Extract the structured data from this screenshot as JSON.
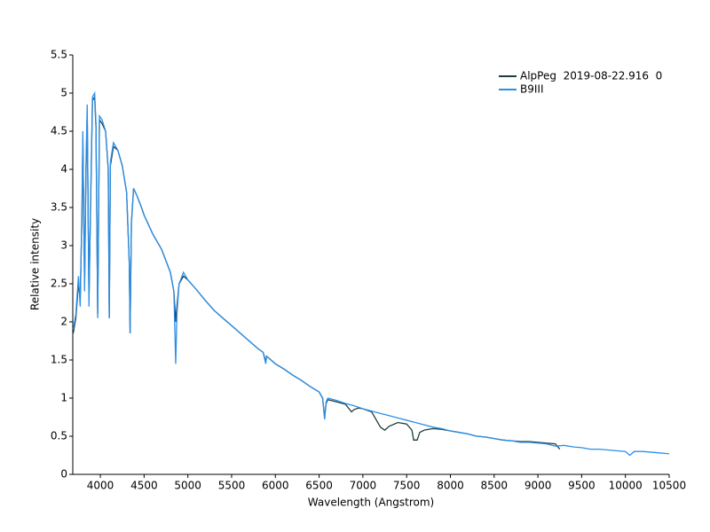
{
  "chart_data": {
    "type": "line",
    "x_label": "Wavelength (Angstrom)",
    "y_label": "Relative intensity",
    "xlim": [
      3685,
      10500
    ],
    "xticks": [
      4000,
      4500,
      5000,
      5500,
      6000,
      6500,
      7000,
      7500,
      8000,
      8500,
      9000,
      9500,
      10000,
      10500
    ],
    "ylim": [
      0,
      5.5
    ],
    "yticks": [
      0,
      0.5,
      1,
      1.5,
      2,
      2.5,
      3,
      3.5,
      4,
      4.5,
      5,
      5.5
    ],
    "grid": false,
    "legend": "upper right",
    "series": [
      {
        "name": "AlpPeg  2019-08-22.916  0",
        "color": "#1f3b3b",
        "x": [
          3690,
          3720,
          3750,
          3770,
          3790,
          3800,
          3820,
          3835,
          3850,
          3870,
          3890,
          3910,
          3935,
          3950,
          3970,
          3990,
          4020,
          4060,
          4090,
          4102,
          4115,
          4150,
          4200,
          4250,
          4300,
          4330,
          4340,
          4355,
          4380,
          4420,
          4470,
          4500,
          4600,
          4700,
          4800,
          4840,
          4861,
          4875,
          4900,
          4950,
          5000,
          5100,
          5200,
          5300,
          5400,
          5500,
          5600,
          5700,
          5800,
          5860,
          5890,
          5900,
          6000,
          6100,
          6200,
          6300,
          6400,
          6500,
          6540,
          6563,
          6580,
          6600,
          6700,
          6800,
          6870,
          6900,
          6950,
          7000,
          7100,
          7150,
          7200,
          7250,
          7300,
          7400,
          7500,
          7560,
          7580,
          7620,
          7650,
          7700,
          7800,
          7900,
          8000,
          8100,
          8200,
          8300,
          8400,
          8500,
          8600,
          8700,
          8800,
          8900,
          9000,
          9100,
          9200,
          9250
        ],
        "values": [
          1.85,
          2.05,
          2.5,
          2.3,
          3.4,
          4.4,
          2.5,
          3.9,
          4.75,
          2.3,
          3.6,
          4.9,
          4.95,
          4.55,
          2.1,
          4.65,
          4.6,
          4.5,
          4.0,
          2.05,
          4.05,
          4.3,
          4.25,
          4.05,
          3.7,
          2.8,
          1.85,
          3.3,
          3.75,
          3.65,
          3.5,
          3.4,
          3.15,
          2.95,
          2.65,
          2.4,
          2.0,
          2.2,
          2.5,
          2.6,
          2.55,
          2.42,
          2.28,
          2.15,
          2.05,
          1.95,
          1.85,
          1.75,
          1.65,
          1.6,
          1.48,
          1.55,
          1.45,
          1.38,
          1.3,
          1.23,
          1.15,
          1.08,
          1.0,
          0.75,
          0.93,
          0.98,
          0.95,
          0.92,
          0.82,
          0.85,
          0.87,
          0.86,
          0.82,
          0.72,
          0.62,
          0.58,
          0.63,
          0.68,
          0.66,
          0.58,
          0.45,
          0.45,
          0.55,
          0.58,
          0.6,
          0.59,
          0.57,
          0.55,
          0.53,
          0.5,
          0.49,
          0.47,
          0.45,
          0.44,
          0.43,
          0.43,
          0.42,
          0.41,
          0.4,
          0.33
        ]
      },
      {
        "name": "B9III",
        "color": "#2b8fe8",
        "x": [
          3690,
          3720,
          3750,
          3770,
          3790,
          3800,
          3820,
          3835,
          3850,
          3870,
          3890,
          3910,
          3935,
          3950,
          3970,
          3990,
          4020,
          4060,
          4090,
          4102,
          4115,
          4150,
          4200,
          4250,
          4300,
          4330,
          4340,
          4355,
          4380,
          4420,
          4470,
          4500,
          4600,
          4700,
          4800,
          4840,
          4861,
          4875,
          4900,
          4950,
          5000,
          5100,
          5200,
          5300,
          5400,
          5500,
          5600,
          5700,
          5800,
          5860,
          5890,
          5900,
          6000,
          6100,
          6200,
          6300,
          6400,
          6500,
          6540,
          6563,
          6580,
          6600,
          6700,
          6800,
          6900,
          7000,
          7100,
          7200,
          7300,
          7400,
          7500,
          7600,
          7700,
          7800,
          7900,
          8000,
          8100,
          8200,
          8300,
          8400,
          8500,
          8600,
          8700,
          8800,
          8900,
          9000,
          9100,
          9200,
          9300,
          9400,
          9500,
          9600,
          9700,
          9800,
          9900,
          10000,
          10050,
          10100,
          10200,
          10300,
          10400,
          10500
        ],
        "values": [
          1.9,
          2.1,
          2.6,
          2.2,
          3.5,
          4.5,
          2.4,
          4.0,
          4.85,
          2.2,
          3.7,
          4.95,
          5.0,
          4.6,
          2.05,
          4.7,
          4.65,
          4.5,
          4.0,
          2.05,
          4.1,
          4.35,
          4.25,
          4.05,
          3.7,
          2.8,
          1.85,
          3.3,
          3.75,
          3.65,
          3.5,
          3.4,
          3.15,
          2.95,
          2.65,
          2.4,
          1.45,
          2.1,
          2.5,
          2.65,
          2.55,
          2.42,
          2.28,
          2.15,
          2.05,
          1.95,
          1.85,
          1.75,
          1.65,
          1.6,
          1.45,
          1.55,
          1.45,
          1.38,
          1.3,
          1.23,
          1.15,
          1.08,
          1.0,
          0.72,
          0.95,
          1.0,
          0.97,
          0.93,
          0.9,
          0.86,
          0.83,
          0.8,
          0.77,
          0.74,
          0.71,
          0.68,
          0.65,
          0.62,
          0.6,
          0.57,
          0.55,
          0.53,
          0.5,
          0.49,
          0.47,
          0.45,
          0.44,
          0.42,
          0.42,
          0.41,
          0.4,
          0.37,
          0.38,
          0.36,
          0.35,
          0.33,
          0.33,
          0.32,
          0.31,
          0.3,
          0.25,
          0.3,
          0.3,
          0.29,
          0.28,
          0.27
        ]
      }
    ]
  }
}
